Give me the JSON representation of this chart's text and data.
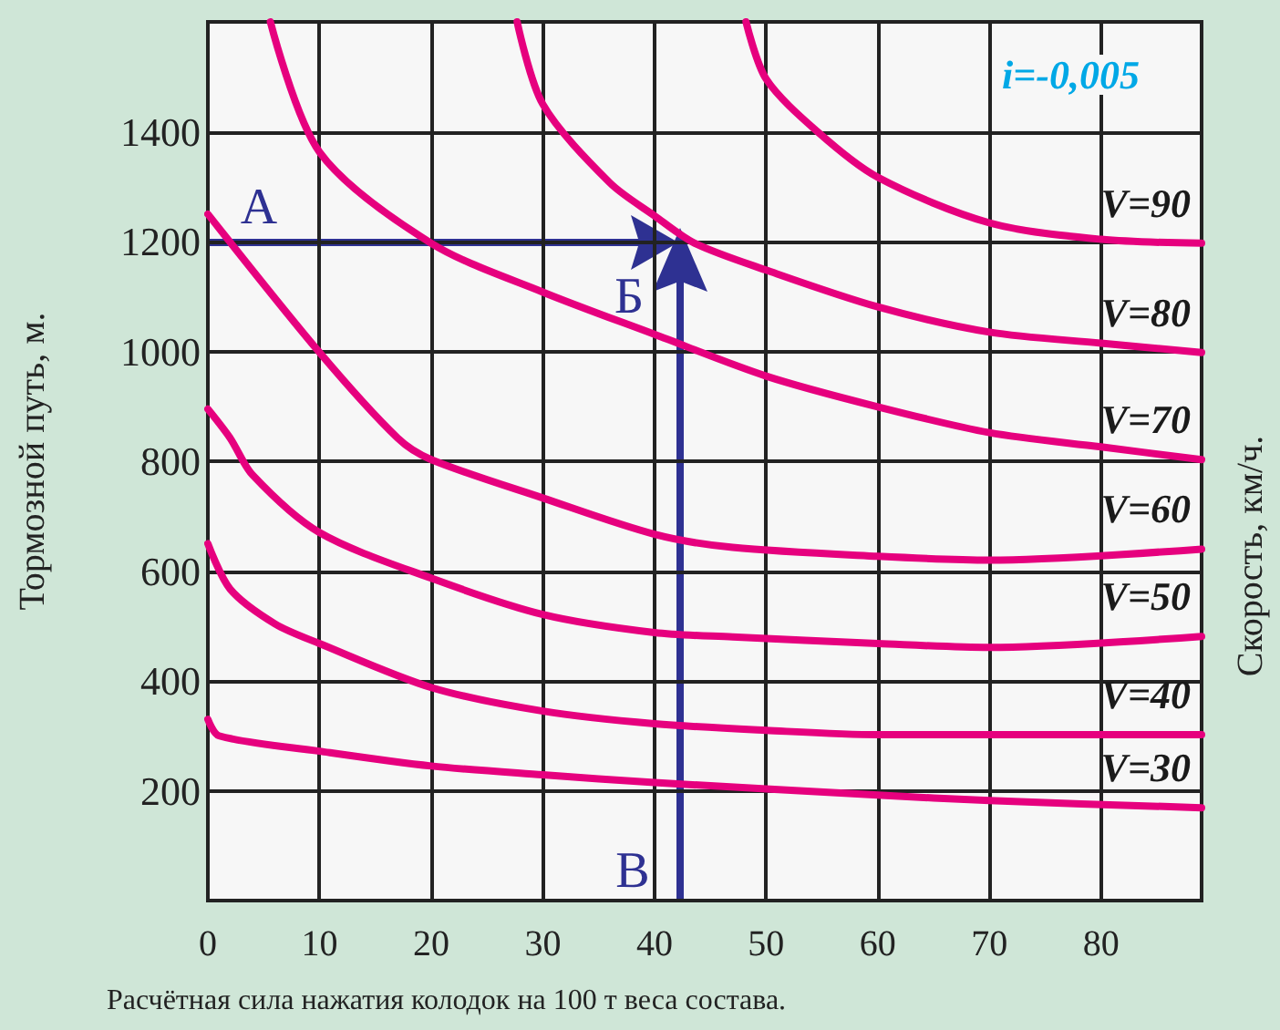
{
  "chart_data": {
    "type": "line",
    "xlabel": "Расчётная сила нажатия колодок на 100 т веса состава.",
    "ylabel": "Тормозной путь, м.",
    "y2label": "Скорость, км/ч.",
    "xlim": [
      0,
      89
    ],
    "xticks": [
      0,
      10,
      20,
      30,
      40,
      50,
      60,
      70,
      80
    ],
    "ylim": [
      0,
      1600
    ],
    "yticks": [
      200,
      400,
      600,
      800,
      1000,
      1200,
      1400
    ],
    "grid": true,
    "legend": false,
    "marker": "none",
    "line_style": "solid",
    "annotations": [
      "i=-0,005",
      "А",
      "Б",
      "В"
    ],
    "series": [
      {
        "name": "V=90",
        "color": "#e6007e",
        "x": [
          48.2,
          50,
          54.6,
          60,
          70,
          80,
          89
        ],
        "values": [
          1600,
          1496,
          1400,
          1317,
          1234,
          1204,
          1197
        ]
      },
      {
        "name": "V=80",
        "color": "#e6007e",
        "x": [
          27.7,
          30,
          36,
          40,
          43.6,
          50,
          60,
          70,
          80,
          89
        ],
        "values": [
          1600,
          1450,
          1307,
          1247,
          1197,
          1148,
          1081,
          1035,
          1015,
          998
        ]
      },
      {
        "name": "V=70",
        "color": "#e6007e",
        "x": [
          5.6,
          10,
          20,
          30,
          40,
          50,
          60,
          70,
          80,
          89
        ],
        "values": [
          1600,
          1363,
          1197,
          1108,
          1031,
          955,
          899,
          852,
          826,
          803
        ]
      },
      {
        "name": "V=60",
        "color": "#e6007e",
        "x": [
          0,
          10,
          17,
          20,
          30,
          40,
          47,
          60,
          70,
          89
        ],
        "values": [
          1250,
          998,
          842,
          803,
          733,
          667,
          643,
          627,
          620,
          640
        ]
      },
      {
        "name": "V=50",
        "color": "#e6007e",
        "x": [
          0,
          2,
          4,
          10,
          20,
          30,
          40,
          47,
          60,
          70,
          89
        ],
        "values": [
          895,
          842,
          775,
          670,
          587,
          521,
          488,
          480,
          468,
          461,
          481
        ]
      },
      {
        "name": "V=40",
        "color": "#e6007e",
        "x": [
          0,
          2,
          6,
          10,
          20,
          30,
          40,
          50,
          60,
          89
        ],
        "values": [
          650,
          567,
          504,
          468,
          388,
          345,
          322,
          310,
          302,
          302
        ]
      },
      {
        "name": "V=30",
        "color": "#e6007e",
        "x": [
          0,
          1,
          10,
          20,
          30,
          40,
          60,
          70,
          89
        ],
        "values": [
          330,
          300,
          272,
          245,
          229,
          215,
          192,
          182,
          169
        ]
      }
    ]
  }
}
